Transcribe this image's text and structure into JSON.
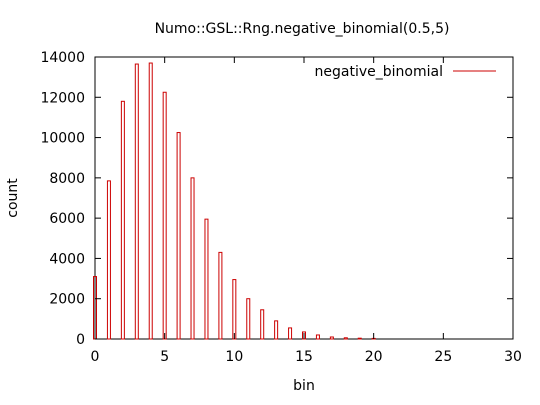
{
  "chart_data": {
    "type": "bar",
    "title": "Numo::GSL::Rng.negative_binomial(0.5,5)",
    "xlabel": "bin",
    "ylabel": "count",
    "xlim": [
      0,
      30
    ],
    "ylim": [
      0,
      14000
    ],
    "xticks": [
      0,
      5,
      10,
      15,
      20,
      25,
      30
    ],
    "yticks": [
      0,
      2000,
      4000,
      6000,
      8000,
      10000,
      12000,
      14000
    ],
    "grid": false,
    "legend_position": "top-right",
    "series": [
      {
        "name": "negative_binomial",
        "color": "#cc0000",
        "x": [
          0,
          1,
          2,
          3,
          4,
          5,
          6,
          7,
          8,
          9,
          10,
          11,
          12,
          13,
          14,
          15,
          16,
          17,
          18,
          19,
          20
        ],
        "values": [
          3100,
          7850,
          11800,
          13650,
          13700,
          12250,
          10250,
          8000,
          5950,
          4300,
          2950,
          2000,
          1450,
          900,
          550,
          350,
          200,
          100,
          60,
          40,
          30
        ]
      }
    ]
  }
}
